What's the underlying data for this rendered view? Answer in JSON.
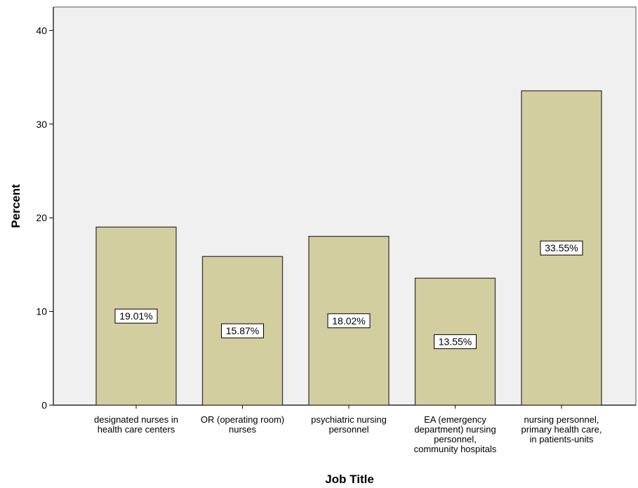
{
  "chart_data": {
    "type": "bar",
    "categories": [
      [
        "designated nurses in",
        "health care centers"
      ],
      [
        "OR (operating room)",
        "nurses"
      ],
      [
        "psychiatric nursing",
        "personnel"
      ],
      [
        "EA (emergency",
        "department) nursing",
        "personnel,",
        "community hospitals"
      ],
      [
        "nursing personnel,",
        "primary health care,",
        "in patients-units"
      ]
    ],
    "values": [
      19.01,
      15.87,
      18.02,
      13.55,
      33.55
    ],
    "data_labels": [
      "19.01%",
      "15.87%",
      "18.02%",
      "13.55%",
      "33.55%"
    ],
    "xlabel": "Job Title",
    "ylabel": "Percent",
    "ylim": [
      0,
      42.5
    ],
    "yticks": [
      0,
      10,
      20,
      30,
      40
    ],
    "grid": false,
    "colors": {
      "plot_background": "#f0f0f0",
      "bar_fill": "#d3cea0",
      "bar_stroke": "#3a3a3a",
      "axis": "#000000",
      "label_box": "#ffffff"
    }
  }
}
